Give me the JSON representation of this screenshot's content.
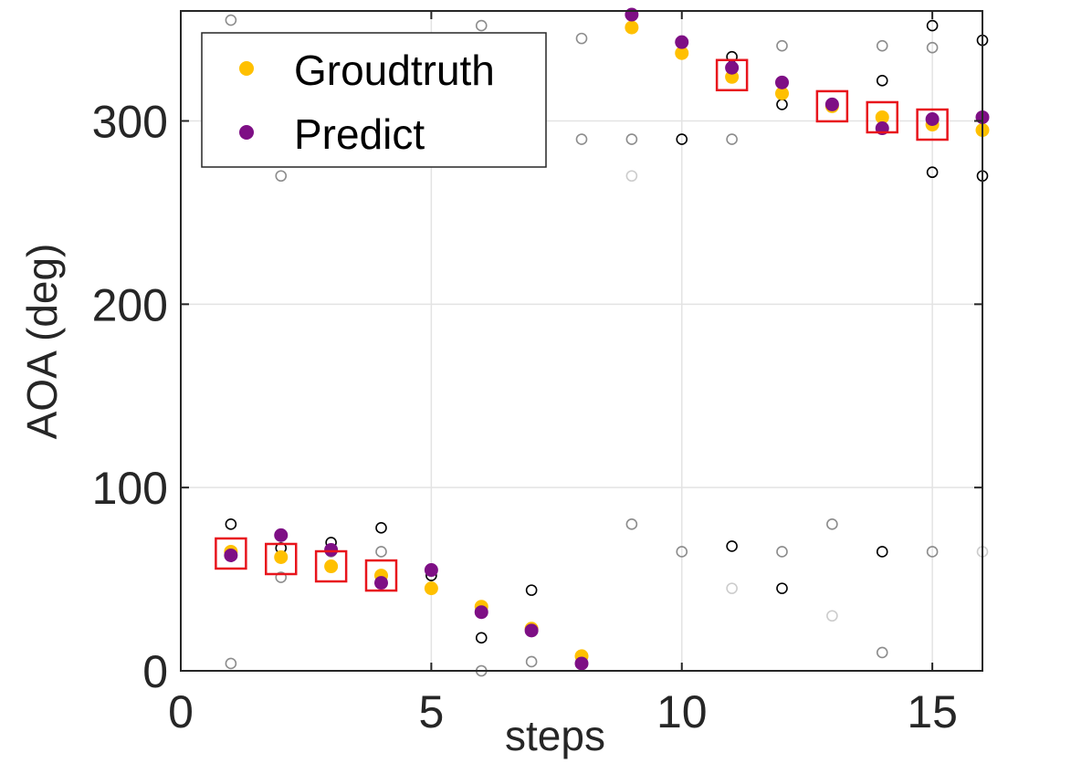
{
  "chart_data": {
    "type": "scatter",
    "title": "",
    "xlabel": "steps",
    "ylabel": "AOA (deg)",
    "xlim": [
      0,
      16
    ],
    "ylim": [
      0,
      360
    ],
    "xticks": [
      0,
      5,
      10,
      15
    ],
    "yticks": [
      0,
      100,
      200,
      300
    ],
    "grid": true,
    "legend_position": "top-left",
    "legend": [
      {
        "name": "Groudtruth",
        "color": "#FFC000"
      },
      {
        "name": "Predict",
        "color": "#7E0F85"
      }
    ],
    "series": [
      {
        "name": "Groudtruth",
        "color": "#FFC000",
        "x": [
          1,
          2,
          3,
          4,
          5,
          6,
          7,
          8,
          9,
          10,
          11,
          12,
          13,
          14,
          15,
          16
        ],
        "y": [
          65,
          62,
          57,
          52,
          45,
          35,
          23,
          8,
          351,
          337,
          324,
          315,
          308,
          302,
          298,
          295
        ]
      },
      {
        "name": "Predict",
        "color": "#7E0F85",
        "x": [
          1,
          2,
          3,
          4,
          5,
          6,
          7,
          8,
          9,
          10,
          11,
          12,
          13,
          14,
          15,
          16
        ],
        "y": [
          63,
          74,
          66,
          48,
          55,
          32,
          22,
          4,
          358,
          343,
          329,
          321,
          309,
          296,
          301,
          302
        ]
      }
    ],
    "candidates_black": {
      "color": "#000000",
      "x": [
        1,
        2,
        3,
        4,
        5,
        6,
        7,
        8,
        9,
        10,
        10,
        11,
        11,
        12,
        12,
        13,
        14,
        14,
        15,
        15,
        16,
        16
      ],
      "y": [
        80,
        67,
        70,
        78,
        52,
        18,
        44,
        5,
        351,
        343,
        290,
        335,
        68,
        309,
        45,
        309,
        322,
        65,
        352,
        272,
        344,
        270
      ]
    },
    "candidates_gray": {
      "color": "#8C8C8C",
      "x": [
        1,
        1,
        2,
        2,
        3,
        4,
        6,
        6,
        7,
        8,
        8,
        9,
        9,
        10,
        11,
        12,
        12,
        13,
        14,
        14,
        15,
        15
      ],
      "y": [
        355,
        4,
        270,
        51,
        65,
        65,
        352,
        0,
        5,
        345,
        290,
        290,
        80,
        65,
        290,
        341,
        65,
        80,
        341,
        10,
        340,
        65
      ]
    },
    "candidates_light": {
      "color": "#CCCCCC",
      "x": [
        6,
        9,
        11,
        13,
        16
      ],
      "y": [
        0,
        270,
        45,
        30,
        65
      ]
    },
    "highlighted_steps": [
      {
        "x": 1,
        "y": 64
      },
      {
        "x": 2,
        "y": 61
      },
      {
        "x": 3,
        "y": 57
      },
      {
        "x": 4,
        "y": 52
      },
      {
        "x": 11,
        "y": 325
      },
      {
        "x": 13,
        "y": 308
      },
      {
        "x": 14,
        "y": 302
      },
      {
        "x": 15,
        "y": 298
      }
    ],
    "highlight_color": "#E8141C"
  }
}
